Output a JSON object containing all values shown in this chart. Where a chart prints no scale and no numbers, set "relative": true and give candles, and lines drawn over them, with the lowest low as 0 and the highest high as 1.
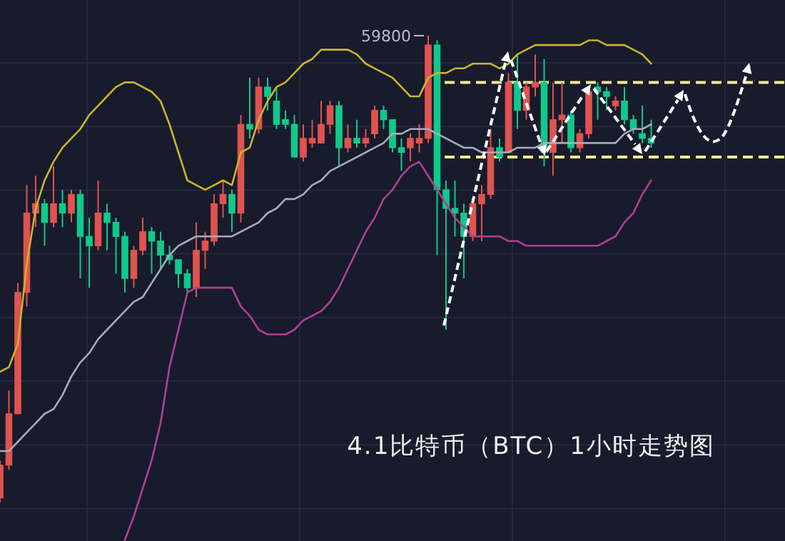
{
  "chart_data": {
    "type": "candlestick",
    "title": "4.1比特币（BTC）1小时走势图",
    "relative": true,
    "grid": true,
    "categories": [
      null,
      null,
      null,
      null,
      null,
      null,
      null,
      null,
      null,
      null,
      null,
      null,
      null,
      null,
      null,
      null,
      null,
      null,
      null,
      null,
      null,
      null,
      null,
      null,
      null,
      null,
      null,
      null,
      null,
      null,
      null,
      null,
      null,
      null,
      null,
      null,
      null,
      null,
      null,
      null,
      null,
      null,
      null,
      null,
      null,
      null,
      null,
      null,
      null,
      null,
      null,
      null,
      null,
      null,
      null,
      null,
      null,
      null,
      null,
      null,
      null,
      null,
      null,
      null,
      null,
      null,
      null,
      null,
      null,
      null,
      null,
      null,
      null,
      null,
      null,
      null,
      null,
      null,
      null,
      null,
      null,
      null,
      null,
      null,
      null,
      null,
      null,
      null,
      null
    ],
    "ohlc": [
      [
        0.01,
        0.09,
        0,
        0.08
      ],
      [
        0.08,
        0.24,
        0.07,
        0.19
      ],
      [
        0.19,
        0.47,
        0.19,
        0.45
      ],
      [
        0.45,
        0.68,
        0.42,
        0.62
      ],
      [
        0.62,
        0.7,
        0.59,
        0.64
      ],
      [
        0.64,
        0.65,
        0.55,
        0.6
      ],
      [
        0.6,
        0.72,
        0.59,
        0.64
      ],
      [
        0.64,
        0.67,
        0.59,
        0.62
      ],
      [
        0.62,
        0.67,
        0.6,
        0.66
      ],
      [
        0.66,
        0.67,
        0.48,
        0.57
      ],
      [
        0.57,
        0.61,
        0.46,
        0.55
      ],
      [
        0.55,
        0.69,
        0.54,
        0.62
      ],
      [
        0.62,
        0.64,
        0.54,
        0.6
      ],
      [
        0.6,
        0.61,
        0.49,
        0.57
      ],
      [
        0.57,
        0.58,
        0.45,
        0.48
      ],
      [
        0.48,
        0.55,
        0.46,
        0.54
      ],
      [
        0.54,
        0.61,
        0.53,
        0.58
      ],
      [
        0.58,
        0.59,
        0.49,
        0.56
      ],
      [
        0.56,
        0.58,
        0.5,
        0.53
      ],
      [
        0.53,
        0.55,
        0.51,
        0.52
      ],
      [
        0.52,
        0.52,
        0.46,
        0.49
      ],
      [
        0.49,
        0.5,
        0.45,
        0.46
      ],
      [
        0.46,
        0.6,
        0.44,
        0.54
      ],
      [
        0.54,
        0.58,
        0.5,
        0.56
      ],
      [
        0.56,
        0.66,
        0.55,
        0.64
      ],
      [
        0.64,
        0.69,
        0.61,
        0.66
      ],
      [
        0.66,
        0.67,
        0.58,
        0.62
      ],
      [
        0.62,
        0.83,
        0.6,
        0.81
      ],
      [
        0.81,
        0.91,
        0.78,
        0.8
      ],
      [
        0.8,
        0.91,
        0.79,
        0.89
      ],
      [
        0.89,
        0.91,
        0.84,
        0.87
      ],
      [
        0.86,
        0.89,
        0.8,
        0.81
      ],
      [
        0.82,
        0.84,
        0.8,
        0.81
      ],
      [
        0.81,
        0.83,
        0.74,
        0.74
      ],
      [
        0.74,
        0.81,
        0.73,
        0.78
      ],
      [
        0.77,
        0.82,
        0.76,
        0.78
      ],
      [
        0.77,
        0.86,
        0.77,
        0.81
      ],
      [
        0.81,
        0.86,
        0.79,
        0.85
      ],
      [
        0.85,
        0.86,
        0.72,
        0.76
      ],
      [
        0.76,
        0.81,
        0.75,
        0.78
      ],
      [
        0.78,
        0.82,
        0.76,
        0.77
      ],
      [
        0.77,
        0.8,
        0.76,
        0.78
      ],
      [
        0.79,
        0.85,
        0.78,
        0.84
      ],
      [
        0.84,
        0.85,
        0.8,
        0.82
      ],
      [
        0.82,
        0.82,
        0.75,
        0.76
      ],
      [
        0.76,
        0.78,
        0.71,
        0.75
      ],
      [
        0.76,
        0.79,
        0.73,
        0.78
      ],
      [
        0.77,
        0.81,
        0.75,
        0.78
      ],
      [
        0.78,
        1,
        0.77,
        0.98
      ],
      [
        0.98,
        0.99,
        0.53,
        0.67
      ],
      [
        0.67,
        0.69,
        0.37,
        0.63
      ],
      [
        0.63,
        0.69,
        0.57,
        0.62
      ],
      [
        0.62,
        0.64,
        0.48,
        0.57
      ],
      [
        0.57,
        0.65,
        0.56,
        0.64
      ],
      [
        0.64,
        0.68,
        0.56,
        0.66
      ],
      [
        0.66,
        0.8,
        0.65,
        0.76
      ],
      [
        0.76,
        0.78,
        0.73,
        0.74
      ],
      [
        0.75,
        0.92,
        0.75,
        0.9
      ],
      [
        0.9,
        0.96,
        0.8,
        0.84
      ],
      [
        0.84,
        0.9,
        0.82,
        0.89
      ],
      [
        0.89,
        0.96,
        0.87,
        0.9
      ],
      [
        0.9,
        0.95,
        0.72,
        0.75
      ],
      [
        0.75,
        0.9,
        0.7,
        0.82
      ],
      [
        0.82,
        0.9,
        0.77,
        0.83
      ],
      [
        0.83,
        0.84,
        0.75,
        0.76
      ],
      [
        0.76,
        0.8,
        0.75,
        0.79
      ],
      [
        0.79,
        0.89,
        0.78,
        0.88
      ],
      [
        0.89,
        0.9,
        0.82,
        0.88
      ],
      [
        0.88,
        0.89,
        0.84,
        0.87
      ],
      [
        0.85,
        0.87,
        0.84,
        0.86
      ],
      [
        0.86,
        0.89,
        0.81,
        0.82
      ],
      [
        0.82,
        0.83,
        0.79,
        0.8
      ],
      [
        0.79,
        0.85,
        0.77,
        0.78
      ],
      [
        0.78,
        0.82,
        0.76,
        0.77
      ],
      null,
      null,
      null,
      null,
      null,
      null,
      null,
      null,
      null,
      null,
      null,
      null,
      null,
      null,
      null
    ],
    "colors": [
      "#e0534f",
      "#e0534f",
      "#e0534f",
      "#e0534f",
      "#e0534f",
      "#10c98b",
      "#e0534f",
      "#10c98b",
      "#e0534f",
      "#10c98b",
      "#10c98b",
      "#e0534f",
      "#10c98b",
      "#10c98b",
      "#10c98b",
      "#e0534f",
      "#e0534f",
      "#10c98b",
      "#10c98b",
      "#10c98b",
      "#10c98b",
      "#10c98b",
      "#e0534f",
      "#e0534f",
      "#e0534f",
      "#e0534f",
      "#10c98b",
      "#e0534f",
      "#10c98b",
      "#e0534f",
      "#10c98b",
      "#10c98b",
      "#10c98b",
      "#10c98b",
      "#e0534f",
      "#e0534f",
      "#e0534f",
      "#e0534f",
      "#10c98b",
      "#e0534f",
      "#10c98b",
      "#e0534f",
      "#e0534f",
      "#10c98b",
      "#10c98b",
      "#10c98b",
      "#e0534f",
      "#e0534f",
      "#e0534f",
      "#10c98b",
      "#10c98b",
      "#10c98b",
      "#10c98b",
      "#e0534f",
      "#e0534f",
      "#e0534f",
      "#10c98b",
      "#e0534f",
      "#10c98b",
      "#e0534f",
      "#e0534f",
      "#10c98b",
      "#e0534f",
      "#e0534f",
      "#10c98b",
      "#e0534f",
      "#e0534f",
      "#10c98b",
      "#10c98b",
      "#e0534f",
      "#10c98b",
      "#10c98b",
      "#10c98b",
      "#10c98b",
      null,
      null,
      null,
      null,
      null,
      null,
      null,
      null,
      null,
      null,
      null,
      null,
      null,
      null,
      null
    ],
    "series": [
      {
        "type": "line",
        "color": "#c9b52c",
        "values": [
          0.28,
          0.29,
          0.34,
          0.51,
          0.63,
          0.69,
          0.73,
          0.76,
          0.78,
          0.8,
          0.83,
          0.85,
          0.87,
          0.89,
          0.9,
          0.9,
          0.89,
          0.88,
          0.86,
          0.81,
          0.75,
          0.69,
          0.68,
          0.67,
          0.68,
          0.69,
          0.68,
          0.75,
          0.76,
          0.82,
          0.86,
          0.89,
          0.9,
          0.92,
          0.94,
          0.95,
          0.97,
          0.97,
          0.97,
          0.97,
          0.96,
          0.94,
          0.93,
          0.92,
          0.91,
          0.89,
          0.87,
          0.87,
          0.91,
          0.92,
          0.92,
          0.93,
          0.93,
          0.94,
          0.94,
          0.94,
          0.93,
          0.94,
          0.96,
          0.97,
          0.98,
          0.98,
          0.98,
          0.98,
          0.98,
          0.98,
          0.99,
          0.99,
          0.98,
          0.98,
          0.98,
          0.97,
          0.96,
          0.94,
          null,
          null,
          null,
          null,
          null,
          null,
          null,
          null,
          null,
          null,
          null,
          null,
          null,
          null,
          null
        ]
      },
      {
        "type": "line",
        "color": "#a9aabb",
        "values": [
          0.11,
          0.11,
          0.13,
          0.15,
          0.17,
          0.19,
          0.2,
          0.23,
          0.27,
          0.3,
          0.32,
          0.35,
          0.37,
          0.39,
          0.41,
          0.43,
          0.44,
          0.47,
          0.5,
          0.53,
          0.55,
          0.56,
          0.57,
          0.57,
          0.57,
          0.57,
          0.57,
          0.58,
          0.59,
          0.6,
          0.62,
          0.63,
          0.65,
          0.65,
          0.66,
          0.68,
          0.69,
          0.71,
          0.72,
          0.73,
          0.74,
          0.75,
          0.76,
          0.77,
          0.79,
          0.79,
          0.8,
          0.8,
          0.8,
          0.79,
          0.78,
          0.77,
          0.76,
          0.76,
          0.75,
          0.75,
          0.75,
          0.75,
          0.76,
          0.76,
          0.76,
          0.77,
          0.77,
          0.77,
          0.77,
          0.77,
          0.77,
          0.77,
          0.77,
          0.77,
          0.79,
          0.8,
          0.8,
          0.81,
          null,
          null,
          null,
          null,
          null,
          null,
          null,
          null,
          null,
          null,
          null,
          null,
          null,
          null,
          null
        ]
      },
      {
        "type": "line",
        "color": "#b23f93",
        "values": [
          null,
          null,
          null,
          null,
          null,
          null,
          null,
          null,
          null,
          null,
          null,
          null,
          null,
          null,
          -0.08,
          -0.03,
          0.03,
          0.09,
          0.17,
          0.29,
          0.37,
          0.45,
          0.46,
          0.46,
          0.46,
          0.46,
          0.46,
          0.42,
          0.4,
          0.37,
          0.36,
          0.36,
          0.36,
          0.37,
          0.39,
          0.4,
          0.41,
          0.43,
          0.46,
          0.5,
          0.54,
          0.58,
          0.61,
          0.65,
          0.67,
          0.7,
          0.72,
          0.73,
          0.7,
          0.67,
          0.64,
          0.61,
          0.59,
          0.57,
          0.57,
          0.57,
          0.57,
          0.56,
          0.56,
          0.55,
          0.55,
          0.55,
          0.55,
          0.55,
          0.55,
          0.55,
          0.55,
          0.55,
          0.56,
          0.57,
          0.6,
          0.62,
          0.66,
          0.69,
          null,
          null,
          null,
          null,
          null,
          null,
          null,
          null,
          null,
          null,
          null,
          null,
          null,
          null,
          null
        ]
      }
    ],
    "ref_lines": [
      {
        "axis": "y",
        "value": 0.9,
        "color": "#f2ee8a",
        "line_style": "dashed"
      },
      {
        "axis": "y",
        "value": 0.74,
        "color": "#f2ee8a",
        "line_style": "dashed"
      }
    ],
    "annotations": [
      "59800"
    ]
  }
}
